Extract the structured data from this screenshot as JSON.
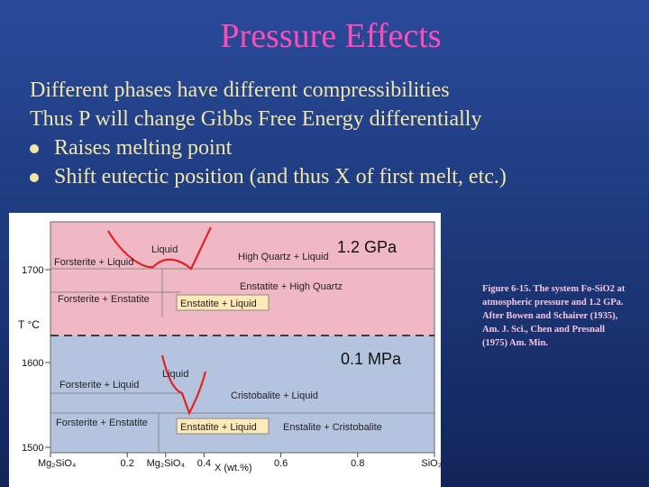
{
  "slide": {
    "title": "Pressure Effects",
    "lines": [
      "Different phases have different compressibilities",
      "Thus P will change Gibbs Free Energy differentially"
    ],
    "bullets": [
      "Raises melting point",
      "Shift eutectic position (and thus X of first melt, etc.)"
    ],
    "caption": "Figure 6-15. The system Fo-SiO2 at atmospheric pressure and 1.2 GPa. After Bowen and Schairer (1935), Am. J. Sci., Chen and Presnall (1975) Am. Min."
  },
  "diagram": {
    "colors": {
      "high_pressure_region": "#f0b8c4",
      "low_pressure_region": "#b4c3de",
      "liquidus_curve": "#e52222",
      "highlight_box": "#ffe9b8"
    },
    "y_axis": {
      "label": "T °C",
      "ticks": [
        "1700",
        "1600",
        "1500"
      ]
    },
    "x_axis": {
      "label": "X (wt.%)",
      "ticks": [
        {
          "label": "Mg₂SiO₄",
          "x": 0
        },
        {
          "label": "0.2",
          "x": 0.2
        },
        {
          "label": "Mg₂SiO₄",
          "x": 0.3
        },
        {
          "label": "0.4",
          "x": 0.4
        },
        {
          "label": "0.6",
          "x": 0.6
        },
        {
          "label": "0.8",
          "x": 0.8
        },
        {
          "label": "SiO₂",
          "x": 1.0
        }
      ]
    },
    "high_pressure": {
      "pressure_label": "1.2 GPa",
      "fields": {
        "liquid": "Liquid",
        "fo_liq": "Forsterite + Liquid",
        "hq_liq": "High Quartz + Liquid",
        "en_hq": "Enstatite + High Quartz",
        "fo_en": "Forsterite + Enstatite",
        "en_liq": "Enstatite + Liquid"
      }
    },
    "low_pressure": {
      "pressure_label": "0.1 MPa",
      "fields": {
        "liquid": "Liquid",
        "fo_liq": "Forsterite + Liquid",
        "cr_liq": "Cristobalite + Liquid",
        "fo_en": "Forsterite + Enstatite",
        "en_liq": "Enstatite + Liquid",
        "en_cr": "Enstalite + Cristobalite"
      }
    }
  }
}
